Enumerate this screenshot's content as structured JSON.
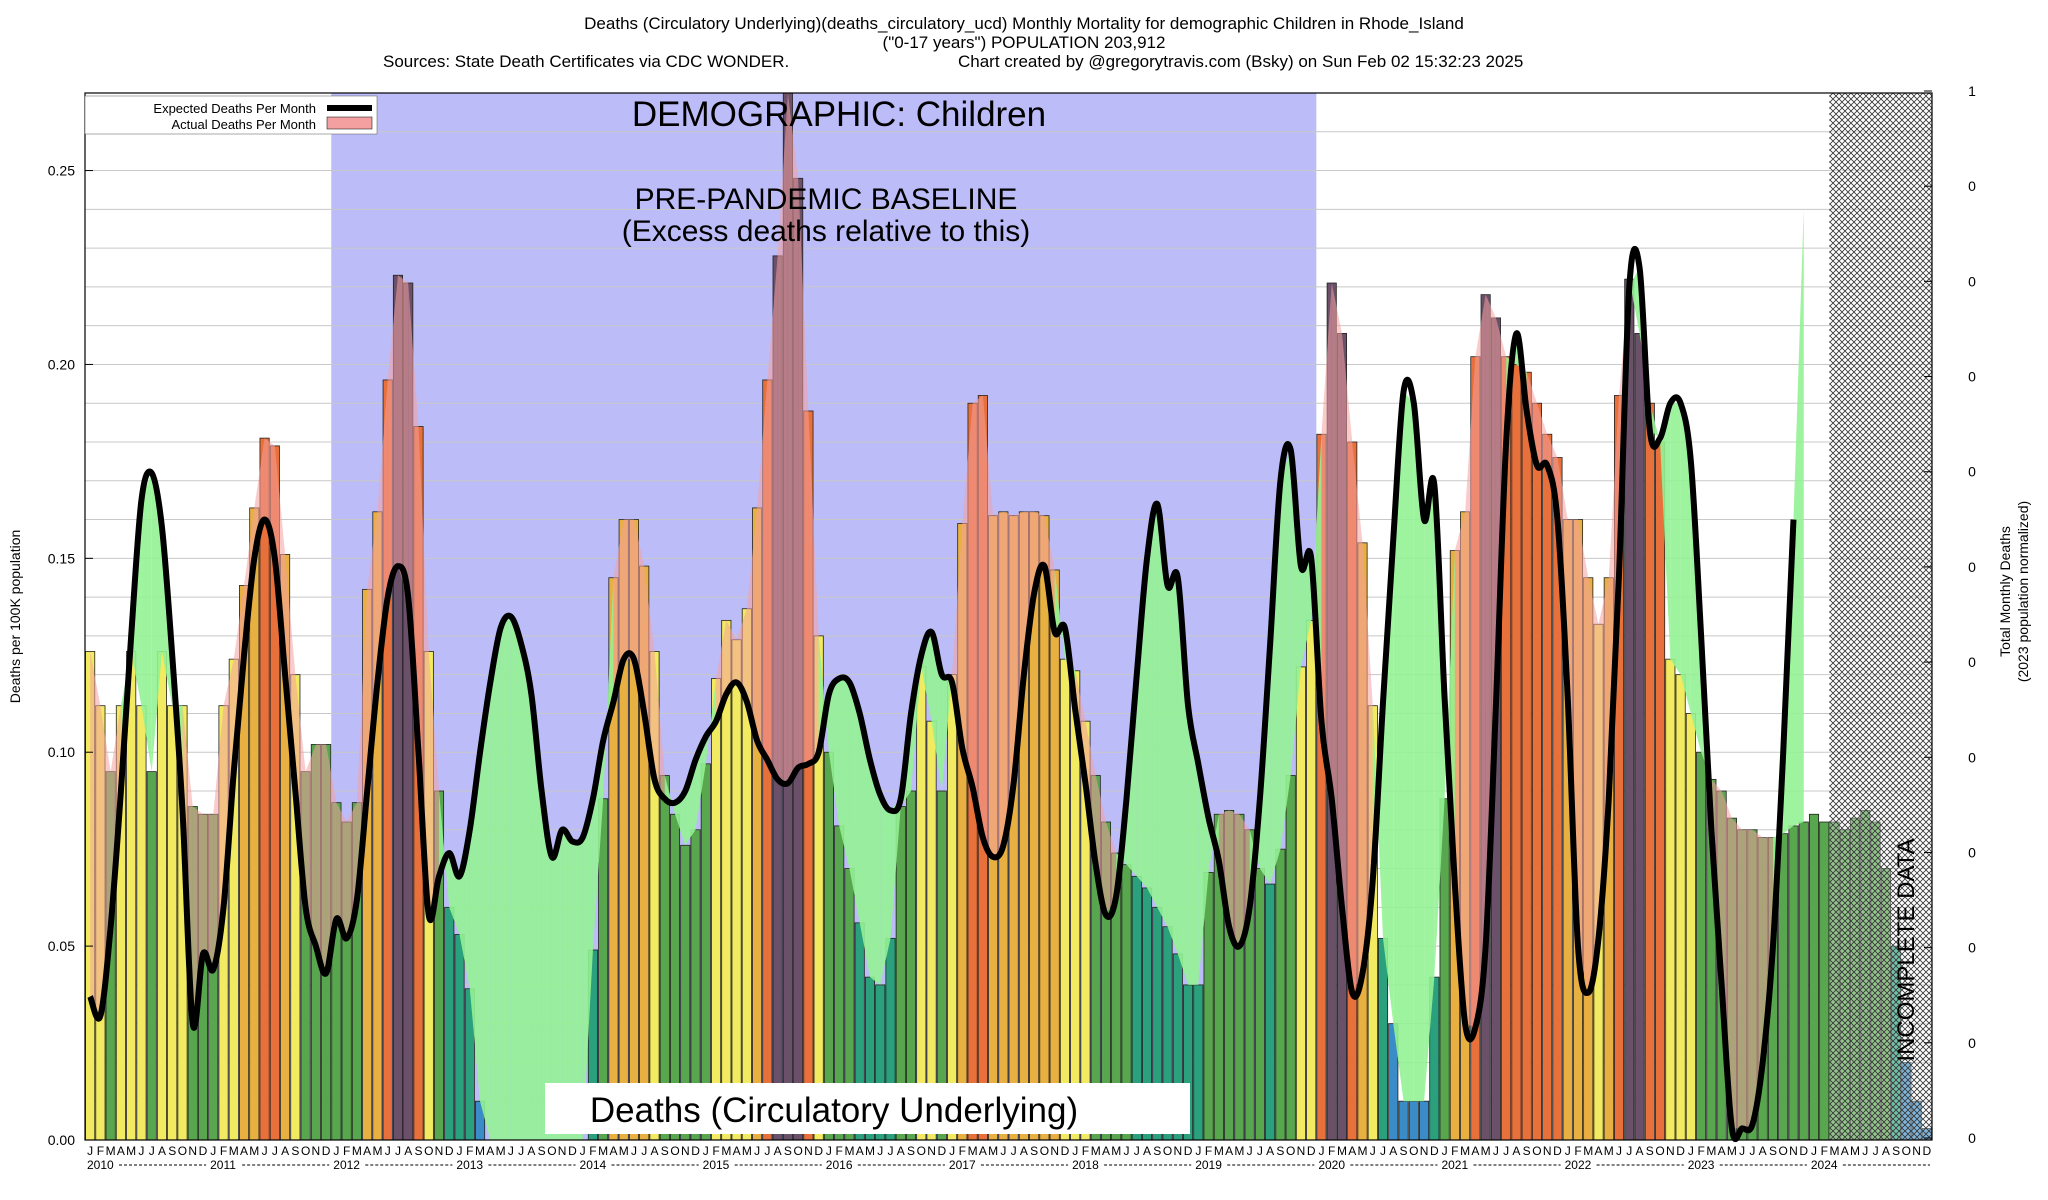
{
  "header": {
    "title_line1": "Deaths (Circulatory Underlying)(deaths_circulatory_ucd) Monthly Mortality for demographic Children in Rhode_Island",
    "title_line2": "(\"0-17 years\") POPULATION 203,912",
    "sources": "Sources: State Death Certificates via CDC WONDER.",
    "credit": "Chart created by @gregorytravis.com (Bsky) on Sun Feb 02 15:32:23 2025"
  },
  "annotations": {
    "demographic": "DEMOGRAPHIC: Children",
    "baseline_line1": "PRE-PANDEMIC BASELINE",
    "baseline_line2": "(Excess deaths relative to this)",
    "metric_box": "Deaths (Circulatory Underlying)",
    "incomplete": "INCOMPLETE DATA"
  },
  "legend": {
    "expected_label": "Expected Deaths Per Month",
    "actual_label": "Actual Deaths Per Month"
  },
  "colors": {
    "baseline_band": "#bcbcf8",
    "excess_fill": "#f4a0a0",
    "deficit_fill": "#94f294",
    "expected_line": "#000000",
    "ramp": [
      "#3a8cc8",
      "#2aa07c",
      "#58a64e",
      "#f2ea60",
      "#e8b040",
      "#e8703a",
      "#6a5068"
    ]
  },
  "chart_data": {
    "type": "bar",
    "ylabel": "Deaths per 100K population",
    "y2label_line1": "Total Monthly Deaths",
    "y2label_line2": "(2023 population normalized)",
    "ylim": [
      0,
      0.27
    ],
    "yticks": [
      "0.00",
      "0.05",
      "0.10",
      "0.15",
      "0.20",
      "0.25"
    ],
    "y2ticks": [
      "1",
      "0",
      "0",
      "0",
      "0",
      "0",
      "0",
      "0",
      "0",
      "0",
      "0",
      "0"
    ],
    "x_start": "2010-01",
    "month_letters": [
      "J",
      "F",
      "M",
      "A",
      "M",
      "J",
      "J",
      "A",
      "S",
      "O",
      "N",
      "D"
    ],
    "years": [
      "2010",
      "2011",
      "2012",
      "2013",
      "2014",
      "2015",
      "2016",
      "2017",
      "2018",
      "2019",
      "2020",
      "2021",
      "2022",
      "2023",
      "2024"
    ],
    "baseline_period": [
      "2012-01",
      "2019-12"
    ],
    "incomplete_period": [
      "2024-03",
      "2024-12"
    ],
    "series": [
      {
        "name": "Actual Deaths Per Month",
        "values": [
          0.126,
          0.112,
          0.095,
          0.112,
          0.126,
          0.112,
          0.095,
          0.126,
          0.112,
          0.112,
          0.086,
          0.084,
          0.084,
          0.112,
          0.124,
          0.143,
          0.163,
          0.181,
          0.179,
          0.151,
          0.12,
          0.095,
          0.102,
          0.102,
          0.087,
          0.082,
          0.087,
          0.142,
          0.162,
          0.196,
          0.223,
          0.221,
          0.184,
          0.126,
          0.09,
          0.06,
          0.053,
          0.039,
          0.01,
          0,
          0,
          0,
          0,
          0,
          0,
          0,
          0,
          0,
          0,
          0.049,
          0.088,
          0.145,
          0.16,
          0.16,
          0.148,
          0.126,
          0.094,
          0.084,
          0.076,
          0.08,
          0.097,
          0.119,
          0.134,
          0.129,
          0.137,
          0.163,
          0.196,
          0.228,
          0.27,
          0.248,
          0.188,
          0.13,
          0.1,
          0.081,
          0.07,
          0.056,
          0.042,
          0.04,
          0.052,
          0.086,
          0.09,
          0.122,
          0.108,
          0.09,
          0.12,
          0.159,
          0.19,
          0.192,
          0.161,
          0.162,
          0.161,
          0.162,
          0.162,
          0.161,
          0.147,
          0.124,
          0.121,
          0.108,
          0.094,
          0.082,
          0.074,
          0.071,
          0.068,
          0.065,
          0.06,
          0.055,
          0.048,
          0.04,
          0.04,
          0.069,
          0.084,
          0.085,
          0.084,
          0.08,
          0.07,
          0.066,
          0.075,
          0.094,
          0.122,
          0.134,
          0.182,
          0.221,
          0.208,
          0.18,
          0.154,
          0.112,
          0.052,
          0.03,
          0.01,
          0.01,
          0.01,
          0.042,
          0.088,
          0.152,
          0.162,
          0.202,
          0.218,
          0.212,
          0.202,
          0.2,
          0.198,
          0.19,
          0.182,
          0.176,
          0.16,
          0.16,
          0.145,
          0.133,
          0.145,
          0.192,
          0.222,
          0.208,
          0.19,
          0.18,
          0.124,
          0.12,
          0.11,
          0.1,
          0.093,
          0.09,
          0.083,
          0.08,
          0.08,
          0.078,
          0.078,
          0.079,
          0.081,
          0.082,
          0.084,
          0.082,
          0.082,
          0.08,
          0.083,
          0.085,
          0.082,
          0.07,
          0.05,
          0.02,
          0.01,
          0.003
        ]
      },
      {
        "name": "Expected Deaths Per Month",
        "values": [
          0.037,
          0.032,
          0.055,
          0.09,
          0.13,
          0.165,
          0.172,
          0.158,
          0.125,
          0.085,
          0.03,
          0.048,
          0.044,
          0.06,
          0.095,
          0.125,
          0.15,
          0.16,
          0.15,
          0.12,
          0.09,
          0.06,
          0.05,
          0.043,
          0.057,
          0.052,
          0.062,
          0.09,
          0.118,
          0.14,
          0.148,
          0.14,
          0.1,
          0.058,
          0.068,
          0.074,
          0.068,
          0.08,
          0.1,
          0.118,
          0.132,
          0.135,
          0.128,
          0.115,
          0.09,
          0.073,
          0.08,
          0.077,
          0.078,
          0.088,
          0.103,
          0.113,
          0.124,
          0.124,
          0.11,
          0.093,
          0.088,
          0.087,
          0.09,
          0.098,
          0.104,
          0.108,
          0.115,
          0.118,
          0.113,
          0.103,
          0.098,
          0.093,
          0.092,
          0.096,
          0.097,
          0.1,
          0.115,
          0.119,
          0.118,
          0.11,
          0.098,
          0.089,
          0.085,
          0.088,
          0.11,
          0.125,
          0.131,
          0.12,
          0.118,
          0.101,
          0.091,
          0.078,
          0.073,
          0.076,
          0.092,
          0.12,
          0.141,
          0.148,
          0.131,
          0.132,
          0.111,
          0.092,
          0.071,
          0.058,
          0.063,
          0.088,
          0.12,
          0.15,
          0.164,
          0.143,
          0.145,
          0.112,
          0.097,
          0.083,
          0.072,
          0.055,
          0.05,
          0.06,
          0.088,
          0.128,
          0.17,
          0.178,
          0.148,
          0.15,
          0.108,
          0.088,
          0.06,
          0.038,
          0.043,
          0.067,
          0.113,
          0.155,
          0.193,
          0.19,
          0.16,
          0.169,
          0.114,
          0.066,
          0.03,
          0.029,
          0.05,
          0.112,
          0.18,
          0.208,
          0.188,
          0.174,
          0.174,
          0.16,
          0.114,
          0.05,
          0.038,
          0.052,
          0.088,
          0.146,
          0.22,
          0.225,
          0.183,
          0.181,
          0.19,
          0.19,
          0.175,
          0.13,
          0.08,
          0.04,
          0.003,
          0.003,
          0.004,
          0.02,
          0.05,
          0.1,
          0.16,
          0.24
        ]
      }
    ]
  }
}
